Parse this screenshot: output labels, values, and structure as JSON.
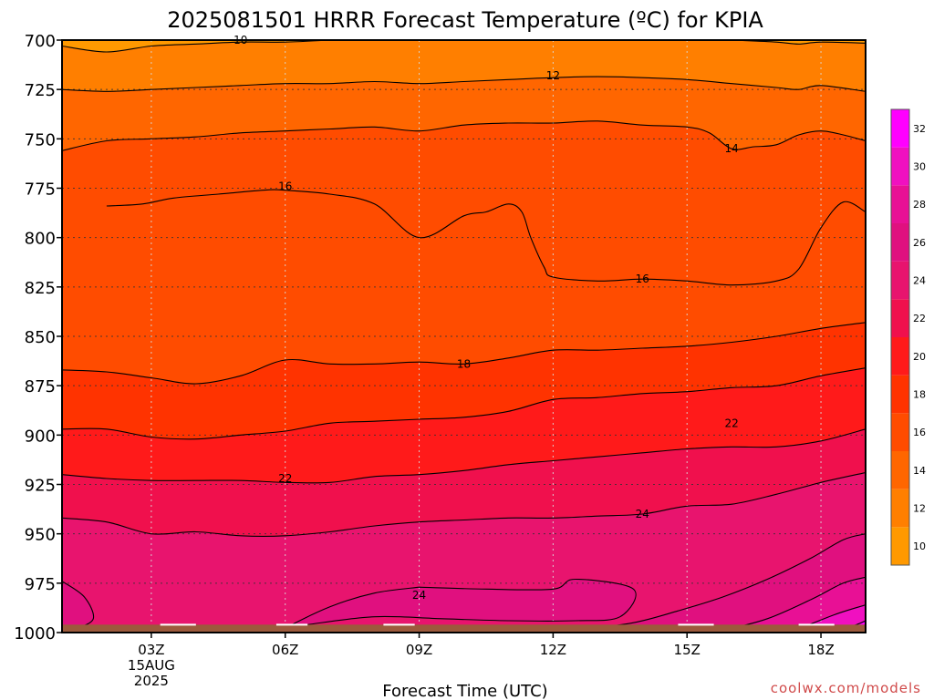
{
  "chart_data": {
    "type": "heatmap",
    "title": "2025081501 HRRR Forecast Temperature (ºC) for KPIA",
    "xlabel": "Forecast Time (UTC)",
    "ylabel": "",
    "credit": "coolwx.com/models",
    "x_range_hours": [
      1,
      19
    ],
    "y_range_hpa": [
      700,
      1000
    ],
    "y_ticks": [
      "700",
      "725",
      "750",
      "775",
      "800",
      "825",
      "850",
      "875",
      "900",
      "925",
      "950",
      "975",
      "1000"
    ],
    "x_ticks": [
      {
        "hour": 3,
        "label": "03Z",
        "sublabel1": "15AUG",
        "sublabel2": "2025"
      },
      {
        "hour": 6,
        "label": "06Z",
        "sublabel1": "",
        "sublabel2": ""
      },
      {
        "hour": 9,
        "label": "09Z",
        "sublabel1": "",
        "sublabel2": ""
      },
      {
        "hour": 12,
        "label": "12Z",
        "sublabel1": "",
        "sublabel2": ""
      },
      {
        "hour": 15,
        "label": "15Z",
        "sublabel1": "",
        "sublabel2": ""
      },
      {
        "hour": 18,
        "label": "18Z",
        "sublabel1": "",
        "sublabel2": ""
      }
    ],
    "grid": true,
    "colorbar": {
      "levels": [
        "10",
        "12",
        "14",
        "16",
        "18",
        "20",
        "22",
        "24",
        "26",
        "28",
        "30",
        "32"
      ],
      "colors": [
        "#ff9900",
        "#ff7f00",
        "#ff6600",
        "#ff4c00",
        "#ff3300",
        "#ff1a1a",
        "#f0104d",
        "#e8146e",
        "#e0107f",
        "#e81095",
        "#f010c0",
        "#ff00ff"
      ],
      "range": [
        9,
        33
      ]
    },
    "fill_levels": [
      {
        "temp_min": 9,
        "color": "#ff9900"
      },
      {
        "temp_min": 11,
        "color": "#ff7f00"
      },
      {
        "temp_min": 13,
        "color": "#ff6600"
      },
      {
        "temp_min": 15,
        "color": "#ff4c00"
      },
      {
        "temp_min": 17,
        "color": "#ff3300"
      },
      {
        "temp_min": 19,
        "color": "#ff1a1a"
      },
      {
        "temp_min": 21,
        "color": "#f0104d"
      },
      {
        "temp_min": 23,
        "color": "#e8146e"
      },
      {
        "temp_min": 25,
        "color": "#e0107f"
      },
      {
        "temp_min": 27,
        "color": "#e81095"
      },
      {
        "temp_min": 29,
        "color": "#f010c0"
      },
      {
        "temp_min": 31,
        "color": "#ff00ff"
      }
    ],
    "contours": [
      {
        "level": 11,
        "label": "10",
        "points": [
          [
            1,
            703
          ],
          [
            2,
            706
          ],
          [
            3,
            703
          ],
          [
            4,
            702
          ],
          [
            5,
            701
          ],
          [
            6,
            701
          ],
          [
            7,
            700
          ],
          [
            8,
            699
          ],
          [
            9,
            699
          ],
          [
            10,
            699
          ],
          [
            11,
            699
          ],
          [
            12,
            699
          ],
          [
            13,
            699
          ],
          [
            14,
            699
          ],
          [
            15,
            699
          ],
          [
            16,
            700
          ],
          [
            17,
            701
          ],
          [
            17.5,
            702
          ],
          [
            18,
            701
          ],
          [
            19,
            701.5
          ]
        ]
      },
      {
        "level": 13,
        "label": "12",
        "points": [
          [
            1,
            725
          ],
          [
            2,
            726
          ],
          [
            3,
            725
          ],
          [
            4,
            724
          ],
          [
            5,
            723
          ],
          [
            6,
            722
          ],
          [
            7,
            722
          ],
          [
            8,
            721
          ],
          [
            9,
            722
          ],
          [
            10,
            721
          ],
          [
            11,
            720
          ],
          [
            12,
            719
          ],
          [
            13,
            718.5
          ],
          [
            14,
            719
          ],
          [
            15,
            720
          ],
          [
            16,
            722
          ],
          [
            17,
            724
          ],
          [
            17.5,
            725
          ],
          [
            18,
            723
          ],
          [
            19,
            726
          ]
        ]
      },
      {
        "level": 15,
        "label": "14",
        "points": [
          [
            1,
            756
          ],
          [
            2,
            751
          ],
          [
            3,
            750
          ],
          [
            4,
            749
          ],
          [
            5,
            747
          ],
          [
            6,
            746
          ],
          [
            7,
            745
          ],
          [
            8,
            744
          ],
          [
            9,
            746
          ],
          [
            10,
            743
          ],
          [
            11,
            742
          ],
          [
            12,
            742
          ],
          [
            13,
            741
          ],
          [
            14,
            743
          ],
          [
            15,
            744
          ],
          [
            15.5,
            747
          ],
          [
            16,
            755
          ],
          [
            16.5,
            754
          ],
          [
            17,
            753
          ],
          [
            17.5,
            748
          ],
          [
            18,
            746
          ],
          [
            18.5,
            748
          ],
          [
            19,
            751
          ]
        ]
      },
      {
        "level": 16,
        "label": "16",
        "points": [
          [
            2,
            784
          ],
          [
            2.8,
            783
          ],
          [
            3.5,
            780
          ],
          [
            4.5,
            778
          ],
          [
            5.5,
            776
          ],
          [
            6,
            776
          ],
          [
            7,
            778
          ],
          [
            8,
            783
          ],
          [
            9,
            800
          ],
          [
            10,
            789
          ],
          [
            10.5,
            787
          ],
          [
            11,
            783
          ],
          [
            11.3,
            787
          ],
          [
            11.5,
            800
          ],
          [
            11.8,
            815
          ],
          [
            12,
            820
          ],
          [
            13,
            822
          ],
          [
            14,
            821
          ],
          [
            15,
            822
          ],
          [
            16,
            824
          ],
          [
            17,
            822
          ],
          [
            17.5,
            816
          ],
          [
            18,
            795
          ],
          [
            18.5,
            782
          ],
          [
            19,
            787
          ]
        ]
      },
      {
        "level": 17,
        "label": "18",
        "points": [
          [
            1,
            867
          ],
          [
            2,
            868
          ],
          [
            3,
            871
          ],
          [
            4,
            874
          ],
          [
            5,
            870
          ],
          [
            6,
            862
          ],
          [
            7,
            864
          ],
          [
            8,
            864
          ],
          [
            9,
            863
          ],
          [
            10,
            864
          ],
          [
            11,
            861
          ],
          [
            12,
            857
          ],
          [
            13,
            857
          ],
          [
            14,
            856
          ],
          [
            15,
            855
          ],
          [
            16,
            853
          ],
          [
            17,
            850
          ],
          [
            18,
            846
          ],
          [
            19,
            843
          ]
        ]
      },
      {
        "level": 19,
        "label": "",
        "points": [
          [
            1,
            897
          ],
          [
            2,
            897
          ],
          [
            3,
            901
          ],
          [
            4,
            902
          ],
          [
            5,
            900
          ],
          [
            6,
            898
          ],
          [
            7,
            894
          ],
          [
            8,
            893
          ],
          [
            9,
            892
          ],
          [
            10,
            891
          ],
          [
            11,
            888
          ],
          [
            12,
            882
          ],
          [
            13,
            881
          ],
          [
            14,
            879
          ],
          [
            15,
            878
          ],
          [
            16,
            876
          ],
          [
            17,
            875
          ],
          [
            18,
            870
          ],
          [
            19,
            866
          ]
        ]
      },
      {
        "level": 21,
        "label": "22",
        "points": [
          [
            1,
            920
          ],
          [
            2,
            922
          ],
          [
            3,
            923
          ],
          [
            4,
            923
          ],
          [
            5,
            923
          ],
          [
            6,
            924
          ],
          [
            7,
            924
          ],
          [
            8,
            921
          ],
          [
            9,
            920
          ],
          [
            10,
            918
          ],
          [
            11,
            915
          ],
          [
            12,
            913
          ],
          [
            13,
            911
          ],
          [
            14,
            909
          ],
          [
            15,
            907
          ],
          [
            16,
            906
          ],
          [
            17,
            906
          ],
          [
            18,
            903
          ],
          [
            19,
            897
          ]
        ]
      },
      {
        "level": 23,
        "label": "24",
        "points": [
          [
            1,
            942
          ],
          [
            2,
            944
          ],
          [
            3,
            950
          ],
          [
            4,
            949
          ],
          [
            5,
            951
          ],
          [
            6,
            951
          ],
          [
            7,
            949
          ],
          [
            8,
            946
          ],
          [
            9,
            944
          ],
          [
            10,
            943
          ],
          [
            11,
            942
          ],
          [
            12,
            942
          ],
          [
            13,
            941
          ],
          [
            14,
            940
          ],
          [
            15,
            936
          ],
          [
            16,
            935
          ],
          [
            17,
            930
          ],
          [
            18,
            924
          ],
          [
            19,
            919
          ]
        ]
      },
      {
        "level": 25,
        "label": "",
        "points": [
          [
            12.5,
            999
          ],
          [
            13.8,
            995
          ],
          [
            14.8,
            989
          ],
          [
            15.8,
            982
          ],
          [
            16.8,
            973
          ],
          [
            17.8,
            962
          ],
          [
            18.5,
            953
          ],
          [
            19,
            950
          ]
        ]
      },
      {
        "level": 27,
        "label": "",
        "points": [
          [
            15.8,
            999
          ],
          [
            16.8,
            993
          ],
          [
            17.8,
            983
          ],
          [
            18.5,
            975
          ],
          [
            19,
            972
          ]
        ]
      },
      {
        "level": 29,
        "label": "",
        "points": [
          [
            17.3,
            1000
          ],
          [
            18.3,
            991
          ],
          [
            19,
            986
          ]
        ]
      },
      {
        "level": 31,
        "label": "",
        "points": [
          [
            18.3,
            1000
          ],
          [
            18.8,
            996
          ],
          [
            19,
            994
          ]
        ]
      }
    ],
    "warm_pockets": [
      {
        "temp": 25,
        "points": [
          [
            1,
            974
          ],
          [
            1.5,
            982
          ],
          [
            1.7,
            993
          ],
          [
            1.3,
            998
          ],
          [
            1,
            999
          ]
        ]
      },
      {
        "temp": 25,
        "points": [
          [
            9,
            977
          ],
          [
            10.5,
            978
          ],
          [
            12,
            978
          ],
          [
            12.5,
            973
          ],
          [
            13.8,
            978
          ],
          [
            13.5,
            992
          ],
          [
            12.5,
            994
          ],
          [
            11,
            994
          ],
          [
            9.5,
            993
          ],
          [
            8,
            992
          ],
          [
            6.5,
            996
          ],
          [
            6,
            998
          ],
          [
            7,
            987
          ],
          [
            8,
            980
          ]
        ]
      }
    ],
    "contour_labels": [
      {
        "text": "10",
        "hour": 5,
        "hpa": 700
      },
      {
        "text": "12",
        "hour": 12,
        "hpa": 718
      },
      {
        "text": "14",
        "hour": 16,
        "hpa": 755
      },
      {
        "text": "16",
        "hour": 6,
        "hpa": 774
      },
      {
        "text": "16",
        "hour": 14,
        "hpa": 821
      },
      {
        "text": "18",
        "hour": 10,
        "hpa": 864
      },
      {
        "text": "22",
        "hour": 16,
        "hpa": 894
      },
      {
        "text": "22",
        "hour": 6,
        "hpa": 922
      },
      {
        "text": "24",
        "hour": 14,
        "hpa": 940
      },
      {
        "text": "24",
        "hour": 9,
        "hpa": 981
      }
    ],
    "ground_hpa": 996
  }
}
